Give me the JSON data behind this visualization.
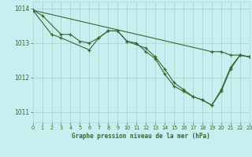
{
  "title": "Graphe pression niveau de la mer (hPa)",
  "bg_color": "#c8eef0",
  "grid_color": "#b0d8d8",
  "line_color": "#2d6b2d",
  "xlim": [
    0,
    23
  ],
  "ylim": [
    1010.7,
    1014.2
  ],
  "yticks": [
    1011,
    1012,
    1013,
    1014
  ],
  "xticks": [
    0,
    1,
    2,
    3,
    4,
    5,
    6,
    7,
    8,
    9,
    10,
    11,
    12,
    13,
    14,
    15,
    16,
    17,
    18,
    19,
    20,
    21,
    22,
    23
  ],
  "series": [
    {
      "x": [
        0,
        1,
        3,
        4,
        5,
        6,
        7,
        8,
        9,
        10,
        11,
        12,
        13,
        14,
        15,
        16,
        17,
        18,
        19,
        20,
        21,
        22,
        23
      ],
      "y": [
        1013.95,
        1013.8,
        1013.25,
        1013.25,
        1013.05,
        1013.0,
        1013.15,
        1013.35,
        1013.35,
        1013.05,
        1013.0,
        1012.75,
        1012.55,
        1012.1,
        1011.75,
        1011.6,
        1011.45,
        1011.35,
        1011.2,
        1011.65,
        1012.3,
        1012.65,
        1012.6
      ]
    },
    {
      "x": [
        0,
        2,
        3,
        6,
        7,
        8,
        9,
        10,
        12,
        13,
        14,
        15,
        16,
        17,
        18,
        19,
        20,
        21,
        22,
        23
      ],
      "y": [
        1013.95,
        1013.25,
        1013.15,
        1012.8,
        1013.15,
        1013.35,
        1013.35,
        1013.05,
        1012.85,
        1012.6,
        1012.25,
        1011.85,
        1011.65,
        1011.45,
        1011.35,
        1011.2,
        1011.6,
        1012.25,
        1012.65,
        1012.6
      ]
    },
    {
      "x": [
        0,
        19,
        20,
        21,
        22,
        23
      ],
      "y": [
        1013.95,
        1012.75,
        1012.75,
        1012.65,
        1012.65,
        1012.6
      ]
    }
  ]
}
